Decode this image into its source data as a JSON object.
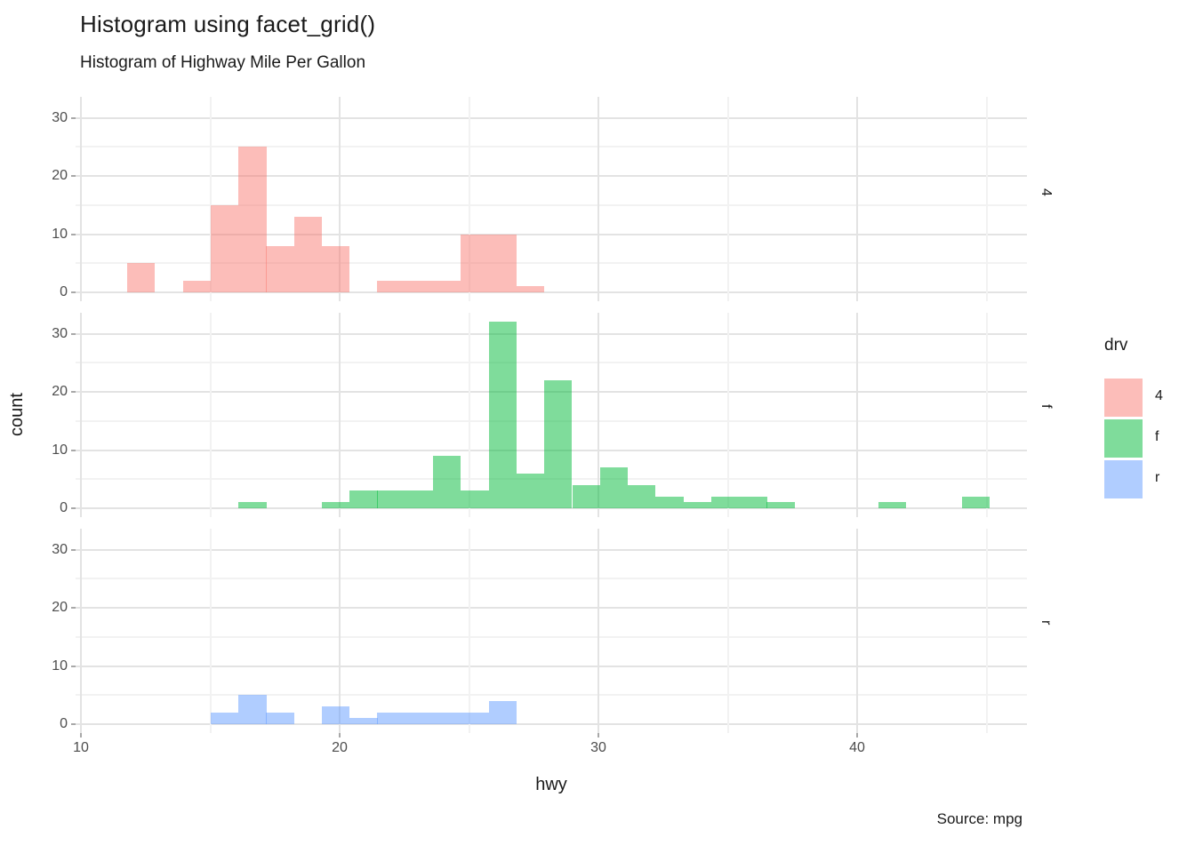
{
  "header": {
    "title": "Histogram using facet_grid()",
    "subtitle": "Histogram of Highway Mile Per Gallon"
  },
  "caption": "Source: mpg",
  "axes": {
    "x": {
      "label": "hwy",
      "ticks": [
        10,
        20,
        30,
        40
      ],
      "minor": [
        15,
        25,
        35,
        45
      ],
      "range": [
        9.8,
        46.8
      ]
    },
    "y": {
      "label": "count",
      "ticks": [
        0,
        10,
        20,
        30
      ],
      "minor": [
        5,
        15,
        25
      ],
      "range": [
        -1.6,
        33.6
      ]
    }
  },
  "legend": {
    "title": "drv",
    "items": [
      {
        "label": "4",
        "color": "rgba(248,118,109,0.48)"
      },
      {
        "label": "f",
        "color": "rgba(0,186,56,0.5)"
      },
      {
        "label": "r",
        "color": "rgba(97,156,255,0.5)"
      }
    ]
  },
  "chart_data": {
    "type": "bar",
    "subtype": "faceted-histogram",
    "xlabel": "hwy",
    "ylabel": "count",
    "binwidth": 1.076,
    "facet_variable": "drv",
    "facets": [
      {
        "strip": "4",
        "color": "rgba(248,118,109,0.48)",
        "bars": [
          [
            11.79,
            5
          ],
          [
            13.94,
            2
          ],
          [
            15.01,
            15
          ],
          [
            16.09,
            25
          ],
          [
            17.16,
            8
          ],
          [
            18.24,
            13
          ],
          [
            19.31,
            8
          ],
          [
            21.46,
            2
          ],
          [
            22.54,
            2
          ],
          [
            23.61,
            2
          ],
          [
            24.69,
            10
          ],
          [
            25.76,
            10
          ],
          [
            26.84,
            1
          ]
        ]
      },
      {
        "strip": "f",
        "color": "rgba(0,186,56,0.5)",
        "bars": [
          [
            16.09,
            1
          ],
          [
            19.31,
            1
          ],
          [
            20.39,
            3
          ],
          [
            21.46,
            3
          ],
          [
            22.54,
            3
          ],
          [
            23.61,
            9
          ],
          [
            24.69,
            3
          ],
          [
            25.76,
            32
          ],
          [
            26.84,
            6
          ],
          [
            27.91,
            22
          ],
          [
            28.99,
            4
          ],
          [
            30.06,
            7
          ],
          [
            31.14,
            4
          ],
          [
            32.21,
            2
          ],
          [
            33.29,
            1
          ],
          [
            34.36,
            2
          ],
          [
            35.44,
            2
          ],
          [
            36.51,
            1
          ],
          [
            40.82,
            1
          ],
          [
            44.05,
            2
          ]
        ]
      },
      {
        "strip": "r",
        "color": "rgba(97,156,255,0.5)",
        "bars": [
          [
            15.01,
            2
          ],
          [
            16.09,
            5
          ],
          [
            17.16,
            2
          ],
          [
            19.31,
            3
          ],
          [
            20.39,
            1
          ],
          [
            21.46,
            2
          ],
          [
            22.54,
            2
          ],
          [
            23.61,
            2
          ],
          [
            24.69,
            2
          ],
          [
            25.76,
            4
          ]
        ]
      }
    ]
  }
}
